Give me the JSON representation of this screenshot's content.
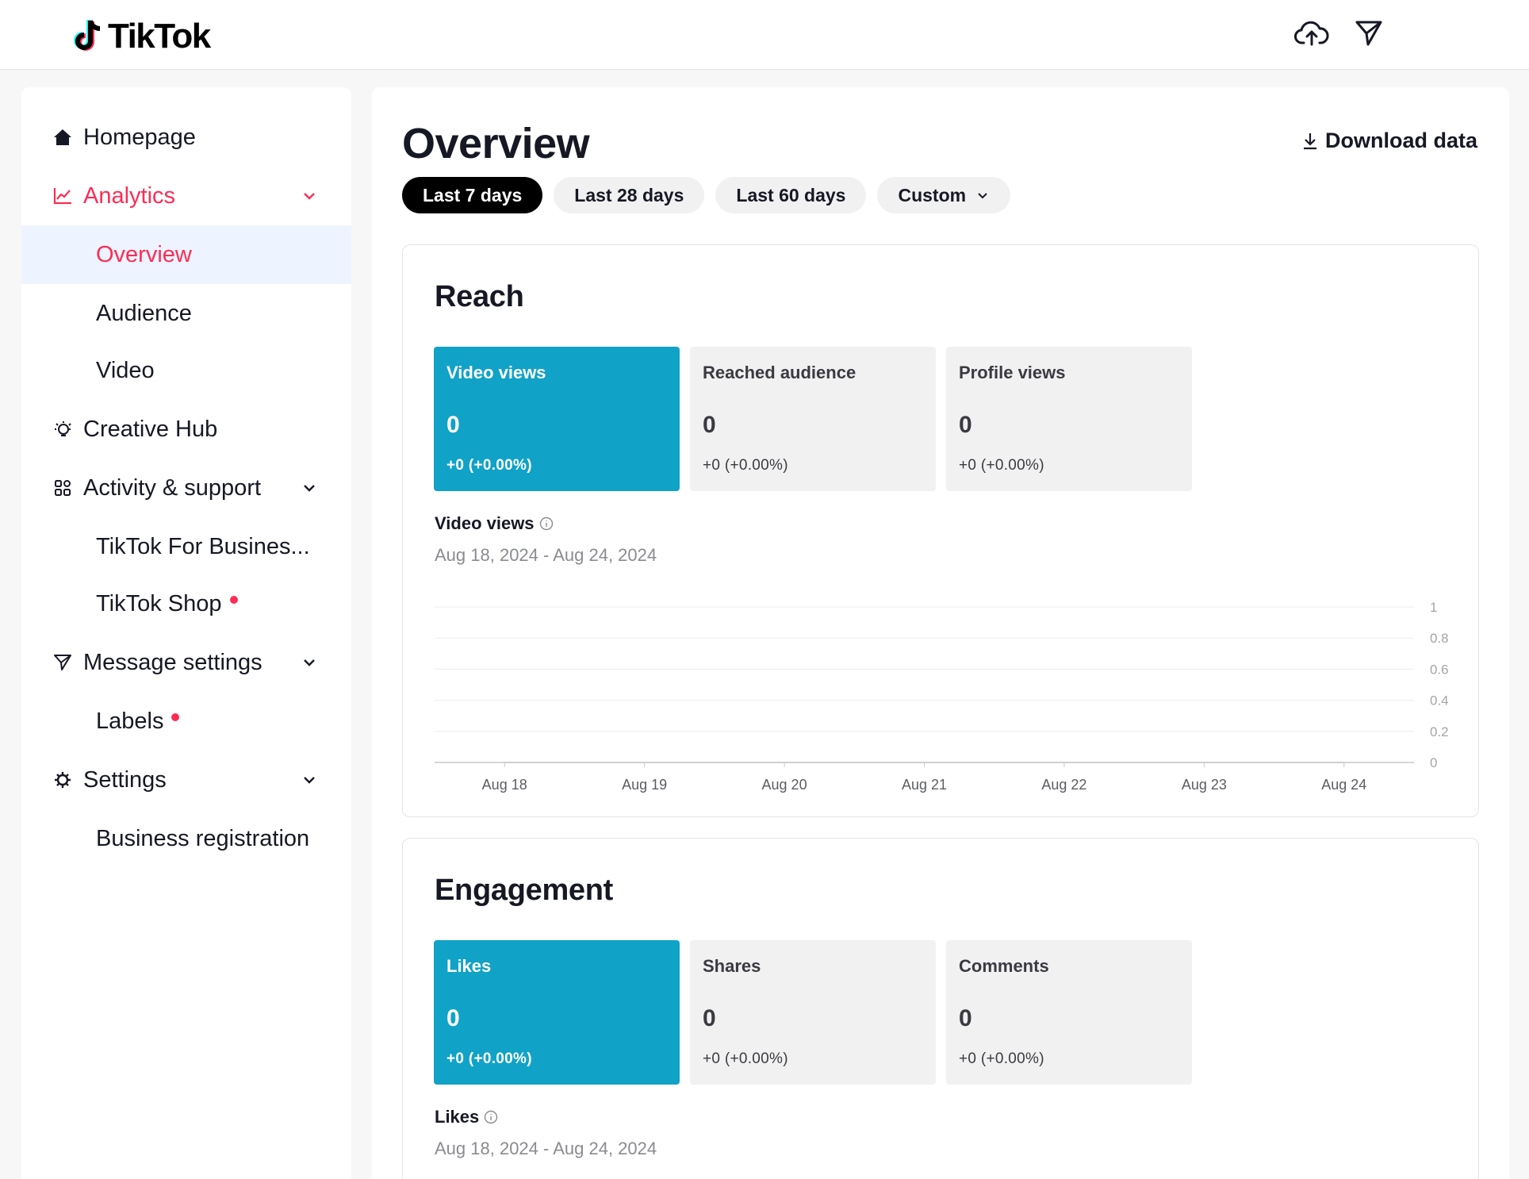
{
  "brand": {
    "name": "TikTok"
  },
  "sidebar": {
    "items": [
      {
        "label": "Homepage",
        "icon": "home-icon"
      },
      {
        "label": "Analytics",
        "icon": "chart-icon"
      },
      {
        "label": "Overview"
      },
      {
        "label": "Audience"
      },
      {
        "label": "Video"
      },
      {
        "label": "Creative Hub",
        "icon": "lightbulb-icon"
      },
      {
        "label": "Activity & support",
        "icon": "grid-icon"
      },
      {
        "label": "TikTok For Busines..."
      },
      {
        "label": "TikTok Shop"
      },
      {
        "label": "Message settings",
        "icon": "send-icon"
      },
      {
        "label": "Labels"
      },
      {
        "label": "Settings",
        "icon": "gear-icon"
      },
      {
        "label": "Business registration"
      }
    ]
  },
  "main": {
    "title": "Overview",
    "download_label": "Download data",
    "tabs": [
      {
        "label": "Last 7 days"
      },
      {
        "label": "Last 28 days"
      },
      {
        "label": "Last 60 days"
      },
      {
        "label": "Custom"
      }
    ]
  },
  "reach": {
    "title": "Reach",
    "metrics": [
      {
        "label": "Video views",
        "value": "0",
        "change": "+0 (+0.00%)"
      },
      {
        "label": "Reached audience",
        "value": "0",
        "change": "+0 (+0.00%)"
      },
      {
        "label": "Profile views",
        "value": "0",
        "change": "+0 (+0.00%)"
      }
    ],
    "chart_label": "Video views",
    "date_range": "Aug 18, 2024 - Aug 24, 2024"
  },
  "engagement": {
    "title": "Engagement",
    "metrics": [
      {
        "label": "Likes",
        "value": "0",
        "change": "+0 (+0.00%)"
      },
      {
        "label": "Shares",
        "value": "0",
        "change": "+0 (+0.00%)"
      },
      {
        "label": "Comments",
        "value": "0",
        "change": "+0 (+0.00%)"
      }
    ],
    "chart_label": "Likes",
    "date_range": "Aug 18, 2024 - Aug 24, 2024"
  },
  "colors": {
    "accent": "#fe2c55",
    "metric_active": "#11a2c7",
    "selected_bg": "#eef4ff"
  },
  "chart_data": {
    "type": "line",
    "categories": [
      "Aug 18",
      "Aug 19",
      "Aug 20",
      "Aug 21",
      "Aug 22",
      "Aug 23",
      "Aug 24"
    ],
    "series": [
      {
        "values": [
          0,
          0,
          0,
          0,
          0,
          0,
          0
        ]
      }
    ],
    "y_ticks": [
      "1",
      "0.8",
      "0.6",
      "0.4",
      "0.2",
      "0"
    ],
    "ylim": [
      0,
      1
    ],
    "grid": true
  }
}
